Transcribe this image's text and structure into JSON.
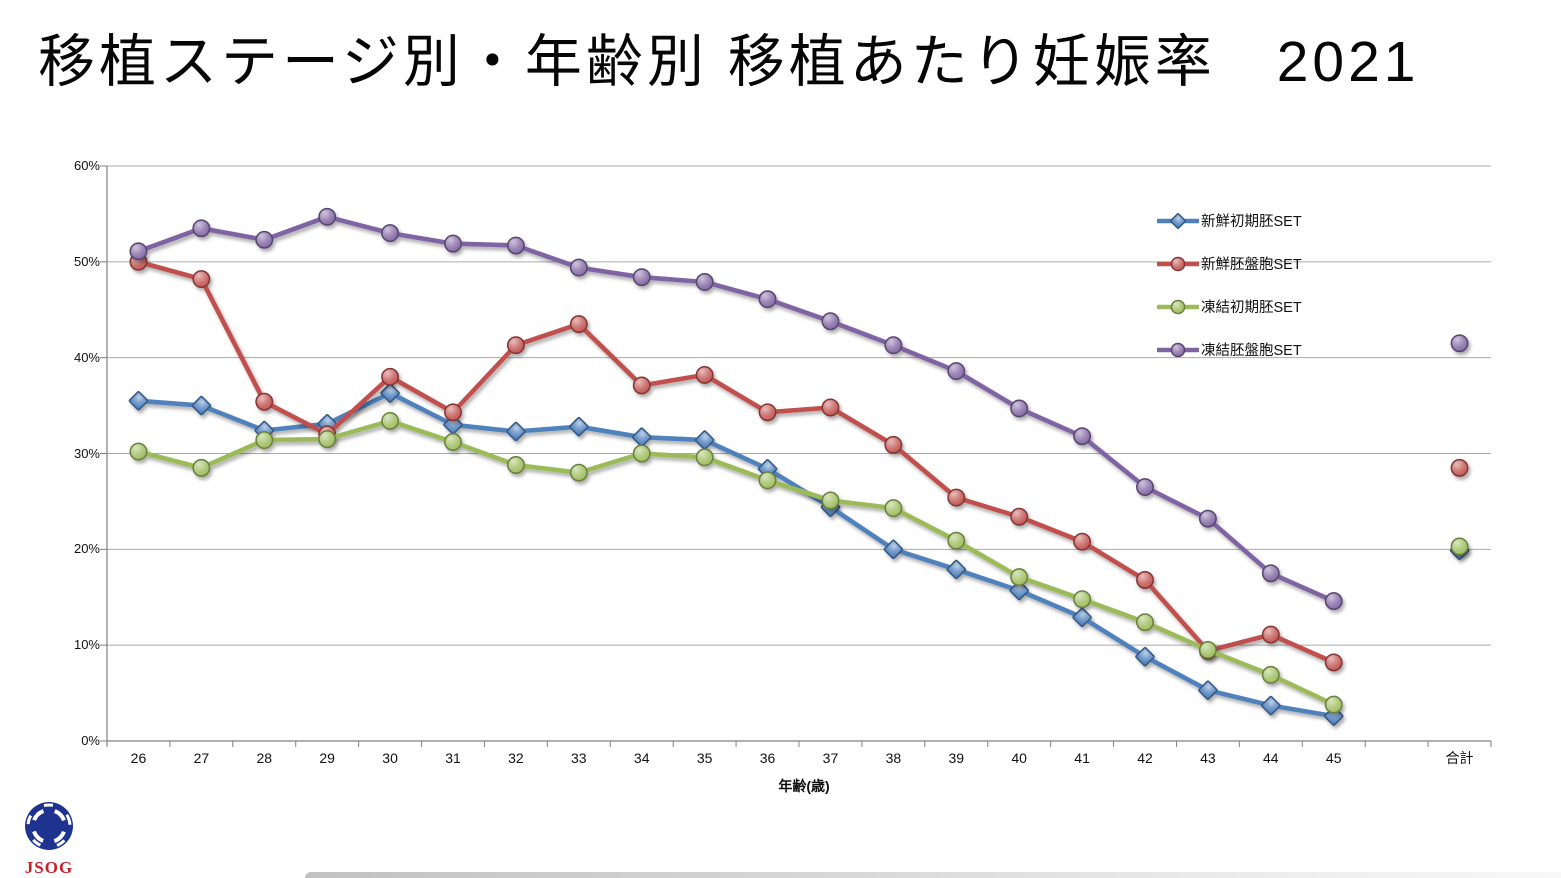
{
  "title": "移植ステージ別・年齢別 移植あたり妊娠率　2021",
  "logo": {
    "text": "JSOG"
  },
  "chart_data": {
    "type": "line",
    "title": "移植ステージ別・年齢別 移植あたり妊娠率　2021",
    "xlabel": "年齢(歳)",
    "ylabel": "",
    "ylim": [
      0,
      60
    ],
    "ytick_labels": [
      "0%",
      "10%",
      "20%",
      "30%",
      "40%",
      "50%",
      "60%"
    ],
    "grid": true,
    "legend_position": "inside-top-right",
    "categories": [
      "26",
      "27",
      "28",
      "29",
      "30",
      "31",
      "32",
      "33",
      "34",
      "35",
      "36",
      "37",
      "38",
      "39",
      "40",
      "41",
      "42",
      "43",
      "44",
      "45"
    ],
    "total_category": "合計",
    "colors": {
      "grid": "#ABABAB",
      "axis": "#808080"
    },
    "series": [
      {
        "name": "新鮮初期胚SET",
        "color": "#4F81BD",
        "marker": "diamond",
        "values": [
          35.5,
          35.0,
          32.4,
          33.1,
          36.3,
          33.0,
          32.3,
          32.8,
          31.7,
          31.4,
          28.4,
          24.4,
          20.0,
          17.9,
          15.7,
          12.9,
          8.8,
          5.3,
          3.7,
          2.6
        ],
        "total": 19.9
      },
      {
        "name": "新鮮胚盤胞SET",
        "color": "#C0504D",
        "marker": "circle",
        "values": [
          50.0,
          48.2,
          35.4,
          32.0,
          38.0,
          34.3,
          41.3,
          43.5,
          37.1,
          38.2,
          34.3,
          34.8,
          30.9,
          25.4,
          23.4,
          20.8,
          16.8,
          9.4,
          11.1,
          8.2
        ],
        "total": 28.5
      },
      {
        "name": "凍結初期胚SET",
        "color": "#9BBB59",
        "marker": "circle",
        "values": [
          30.2,
          28.5,
          31.4,
          31.5,
          33.4,
          31.2,
          28.8,
          28.0,
          30.0,
          29.6,
          27.2,
          25.1,
          24.3,
          20.9,
          17.1,
          14.8,
          12.4,
          9.5,
          6.9,
          3.8
        ],
        "total": 20.3
      },
      {
        "name": "凍結胚盤胞SET",
        "color": "#8064A2",
        "marker": "circle",
        "values": [
          51.1,
          53.5,
          52.3,
          54.7,
          53.0,
          51.9,
          51.7,
          49.4,
          48.4,
          47.9,
          46.1,
          43.8,
          41.3,
          38.6,
          34.7,
          31.8,
          26.5,
          23.2,
          17.5,
          14.6
        ],
        "total": 41.5
      }
    ]
  }
}
